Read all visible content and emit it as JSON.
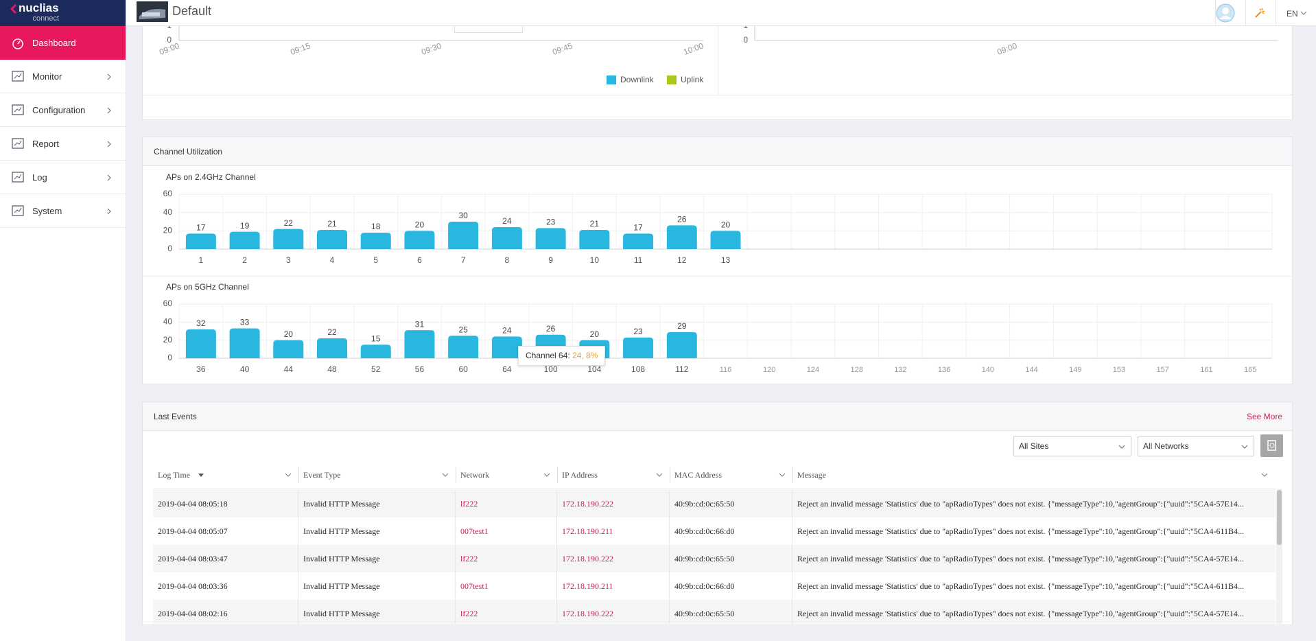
{
  "sidebar": {
    "logo": "nuclias",
    "logo_sub": "connect",
    "menu": [
      "Dashboard",
      "Monitor",
      "Configuration",
      "Report",
      "Log",
      "System"
    ]
  },
  "header": {
    "title": "Default",
    "language": "EN"
  },
  "traffic_chart": {
    "yticks": [
      1,
      0
    ],
    "x": [
      "09:00",
      "09:15",
      "09:30",
      "09:45",
      "10:00"
    ],
    "legend": [
      {
        "name": "Downlink",
        "color": "#29b6df"
      },
      {
        "name": "Uplink",
        "color": "#a8c81e"
      }
    ]
  },
  "client_chart": {
    "yticks": [
      1,
      0
    ],
    "x": [
      "09:00"
    ]
  },
  "channel_utilization": {
    "title": "Channel Utilization",
    "charts": [
      {
        "type": "bar",
        "title": "APs on 2.4GHz Channel",
        "color": "#29b6df",
        "categories": [
          "1",
          "2",
          "3",
          "4",
          "5",
          "6",
          "7",
          "8",
          "9",
          "10",
          "11",
          "12",
          "13"
        ],
        "values": [
          17,
          19,
          22,
          21,
          18,
          20,
          30,
          24,
          23,
          21,
          17,
          26,
          20
        ],
        "ylim": [
          0,
          60
        ],
        "yticks": [
          0,
          20,
          40,
          60
        ],
        "grid": true
      },
      {
        "type": "bar",
        "title": "APs on 5GHz Channel",
        "color": "#29b6df",
        "categories": [
          "36",
          "40",
          "44",
          "48",
          "52",
          "56",
          "60",
          "64",
          "100",
          "104",
          "108",
          "112",
          "116",
          "120",
          "124",
          "128",
          "132",
          "136",
          "140",
          "144",
          "149",
          "153",
          "157",
          "161",
          "165"
        ],
        "values": [
          32,
          33,
          20,
          22,
          15,
          31,
          25,
          24,
          26,
          20,
          23,
          29,
          null,
          null,
          null,
          null,
          null,
          null,
          null,
          null,
          null,
          null,
          null,
          null,
          null
        ],
        "ylim": [
          0,
          60
        ],
        "yticks": [
          0,
          20,
          40,
          60
        ],
        "grid": true
      }
    ],
    "tooltip": {
      "label": "Channel 64:",
      "value": "24,",
      "percent": "8%"
    }
  },
  "last_events": {
    "title": "Last Events",
    "see_more": "See More",
    "filters": [
      "All Sites",
      "All Networks"
    ],
    "columns": [
      "Log Time",
      "Event Type",
      "Network",
      "IP Address",
      "MAC Address",
      "Message"
    ],
    "rows": [
      [
        "2019-04-04  08:05:18",
        "Invalid HTTP Message",
        "lf222",
        "172.18.190.222",
        "40:9b:cd:0c:65:50",
        "Reject an invalid message 'Statistics' due to \"apRadioTypes\" does not exist. {\"messageType\":10,\"agentGroup\":{\"uuid\":\"5CA4-57E14..."
      ],
      [
        "2019-04-04  08:05:07",
        "Invalid HTTP Message",
        "007test1",
        "172.18.190.211",
        "40:9b:cd:0c:66:d0",
        "Reject an invalid message 'Statistics' due to \"apRadioTypes\" does not exist. {\"messageType\":10,\"agentGroup\":{\"uuid\":\"5CA4-611B4..."
      ],
      [
        "2019-04-04  08:03:47",
        "Invalid HTTP Message",
        "lf222",
        "172.18.190.222",
        "40:9b:cd:0c:65:50",
        "Reject an invalid message 'Statistics' due to \"apRadioTypes\" does not exist. {\"messageType\":10,\"agentGroup\":{\"uuid\":\"5CA4-57E14..."
      ],
      [
        "2019-04-04  08:03:36",
        "Invalid HTTP Message",
        "007test1",
        "172.18.190.211",
        "40:9b:cd:0c:66:d0",
        "Reject an invalid message 'Statistics' due to \"apRadioTypes\" does not exist. {\"messageType\":10,\"agentGroup\":{\"uuid\":\"5CA4-611B4..."
      ],
      [
        "2019-04-04  08:02:16",
        "Invalid HTTP Message",
        "lf222",
        "172.18.190.222",
        "40:9b:cd:0c:65:50",
        "Reject an invalid message 'Statistics' due to \"apRadioTypes\" does not exist. {\"messageType\":10,\"agentGroup\":{\"uuid\":\"5CA4-57E14..."
      ]
    ]
  }
}
